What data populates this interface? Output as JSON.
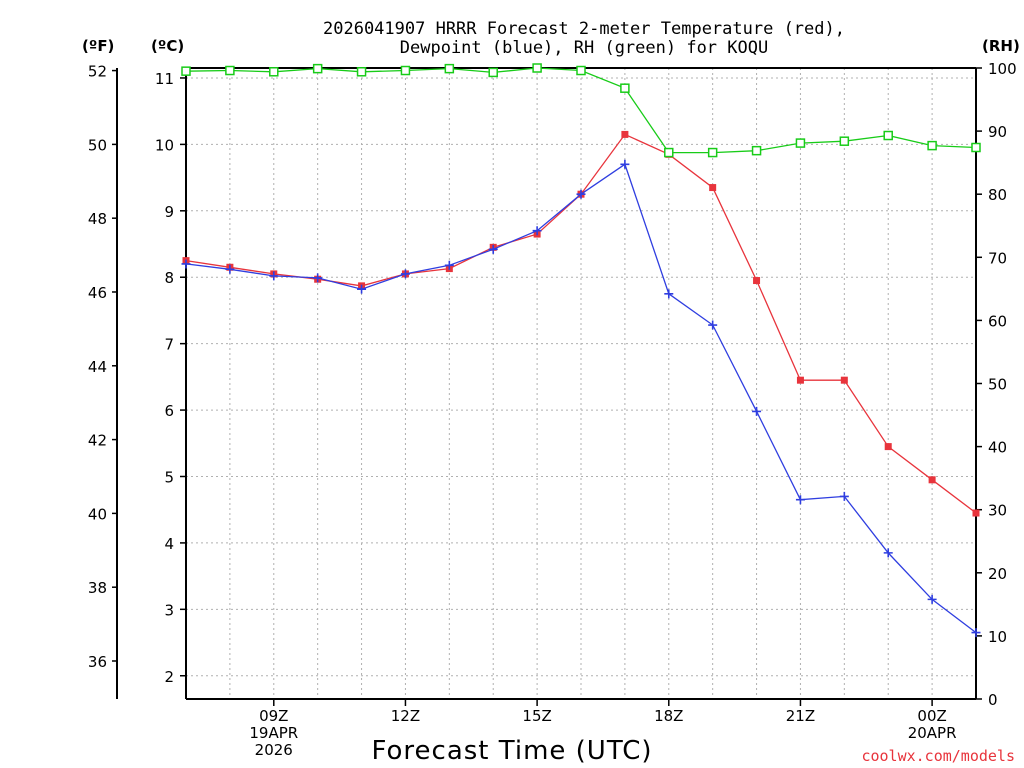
{
  "chart_data": {
    "type": "line",
    "title_line1": "2026041907 HRRR Forecast 2-meter Temperature (red),",
    "title_line2": "Dewpoint (blue), RH (green) for KOQU",
    "xlabel": "Forecast Time (UTC)",
    "credit": "coolwx.com/models",
    "unit_f": "(ºF)",
    "unit_c": "(ºC)",
    "unit_rh": "(RH)",
    "x_hours": [
      7,
      8,
      9,
      10,
      11,
      12,
      13,
      14,
      15,
      16,
      17,
      18,
      19,
      20,
      21,
      22,
      23,
      24,
      25
    ],
    "xlim": [
      7,
      25
    ],
    "ylim_c": [
      1.65,
      11.15
    ],
    "ylim_f": [
      34.97,
      52.07
    ],
    "ylim_rh": [
      0,
      100
    ],
    "c_ticks": [
      2,
      3,
      4,
      5,
      6,
      7,
      8,
      9,
      10,
      11
    ],
    "f_ticks": [
      36,
      38,
      40,
      42,
      44,
      46,
      48,
      50,
      52
    ],
    "rh_ticks": [
      0,
      10,
      20,
      30,
      40,
      50,
      60,
      70,
      80,
      90,
      100
    ],
    "x_ticks": [
      {
        "hour": 9,
        "lines": [
          "09Z",
          "19APR",
          "2026"
        ]
      },
      {
        "hour": 12,
        "lines": [
          "12Z"
        ]
      },
      {
        "hour": 15,
        "lines": [
          "15Z"
        ]
      },
      {
        "hour": 18,
        "lines": [
          "18Z"
        ]
      },
      {
        "hour": 21,
        "lines": [
          "21Z"
        ]
      },
      {
        "hour": 24,
        "lines": [
          "00Z",
          "20APR"
        ]
      }
    ],
    "series": [
      {
        "name": "Temperature",
        "color": "#e8343c",
        "marker": "filled-square",
        "axis": "c",
        "values": [
          8.25,
          8.15,
          8.05,
          7.97,
          7.87,
          8.05,
          8.13,
          8.45,
          8.65,
          9.25,
          10.15,
          9.85,
          9.35,
          7.95,
          6.45,
          6.45,
          5.45,
          4.95,
          4.45
        ]
      },
      {
        "name": "Dewpoint",
        "color": "#2f3ee0",
        "marker": "plus",
        "axis": "c",
        "values": [
          8.2,
          8.12,
          8.02,
          7.99,
          7.82,
          8.05,
          8.18,
          8.42,
          8.7,
          9.25,
          9.7,
          7.75,
          7.28,
          5.98,
          4.65,
          4.7,
          3.85,
          3.15,
          2.65
        ]
      },
      {
        "name": "RH",
        "color": "#18cc18",
        "marker": "open-square",
        "axis": "rh",
        "values": [
          99.5,
          99.6,
          99.4,
          99.9,
          99.4,
          99.6,
          99.9,
          99.3,
          100,
          99.6,
          96.8,
          86.6,
          86.6,
          86.9,
          88.1,
          88.4,
          89.3,
          87.7,
          87.4
        ]
      }
    ]
  }
}
